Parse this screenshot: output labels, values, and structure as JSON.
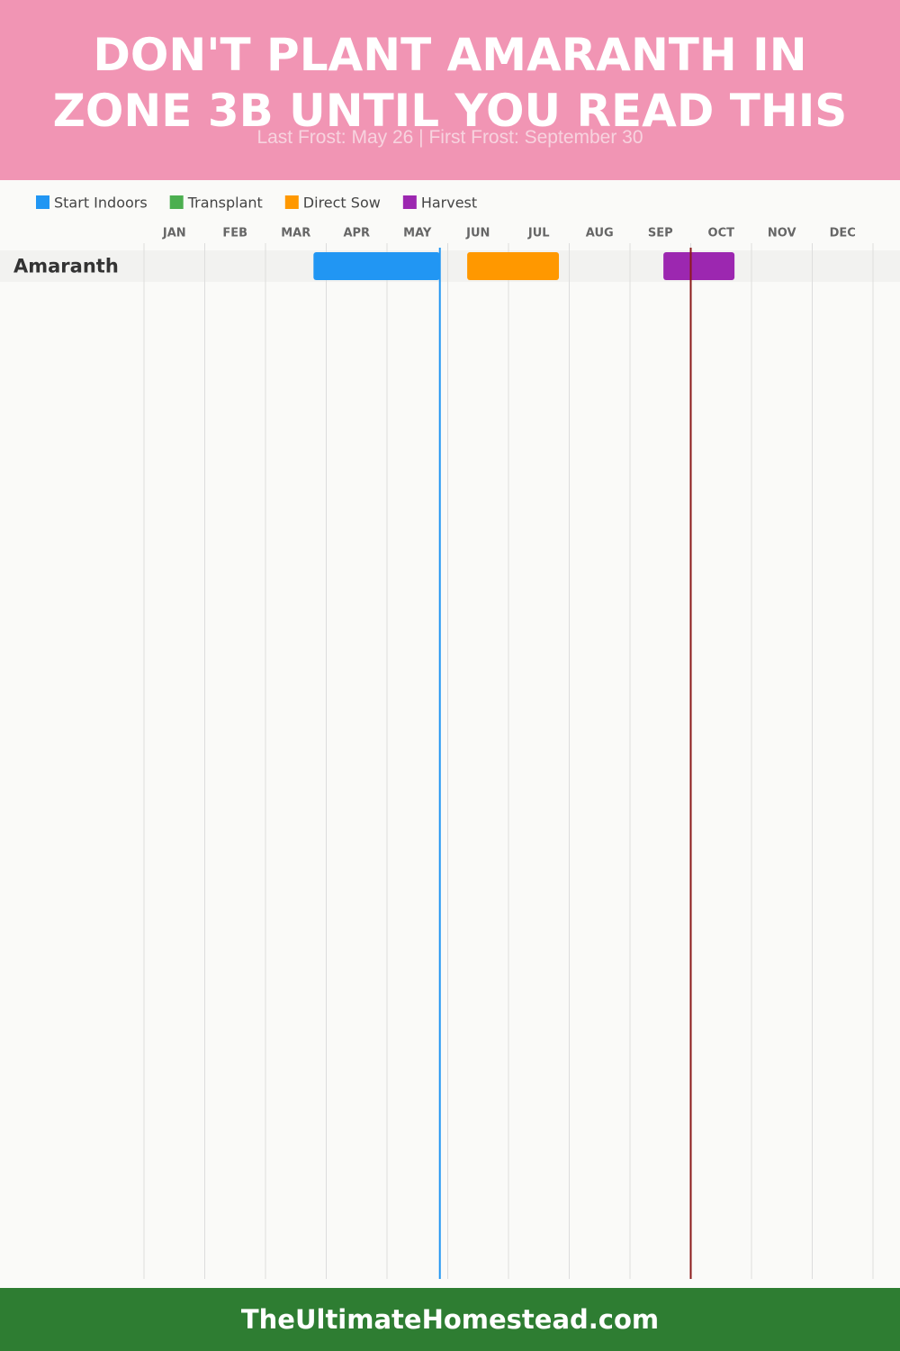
{
  "chart_data": {
    "type": "gantt",
    "title": "DON'T PLANT AMARANTH IN ZONE 3B UNTIL YOU READ THIS",
    "subtitle": "Last Frost: May 26 | First Frost: September 30",
    "categories": [
      "JAN",
      "FEB",
      "MAR",
      "APR",
      "MAY",
      "JUN",
      "JUL",
      "AUG",
      "SEP",
      "OCT",
      "NOV",
      "DEC"
    ],
    "xlim": [
      0,
      12
    ],
    "rows": [
      "Amaranth"
    ],
    "series": [
      {
        "name": "Start Indoors",
        "color": "#2196f3",
        "start": [
          2.79
        ],
        "end": [
          4.87
        ]
      },
      {
        "name": "Transplant",
        "color": "#4caf50",
        "start": [
          null
        ],
        "end": [
          null
        ]
      },
      {
        "name": "Direct Sow",
        "color": "#ff9800",
        "start": [
          5.32
        ],
        "end": [
          6.83
        ]
      },
      {
        "name": "Harvest",
        "color": "#9c27b0",
        "start": [
          8.55
        ],
        "end": [
          9.72
        ]
      }
    ],
    "frost_lines": [
      {
        "value": 4.87,
        "color": "#2196f3"
      },
      {
        "value": 9.0,
        "color": "#8b1a1a"
      }
    ]
  },
  "footer": "TheUltimateHomestead.com"
}
